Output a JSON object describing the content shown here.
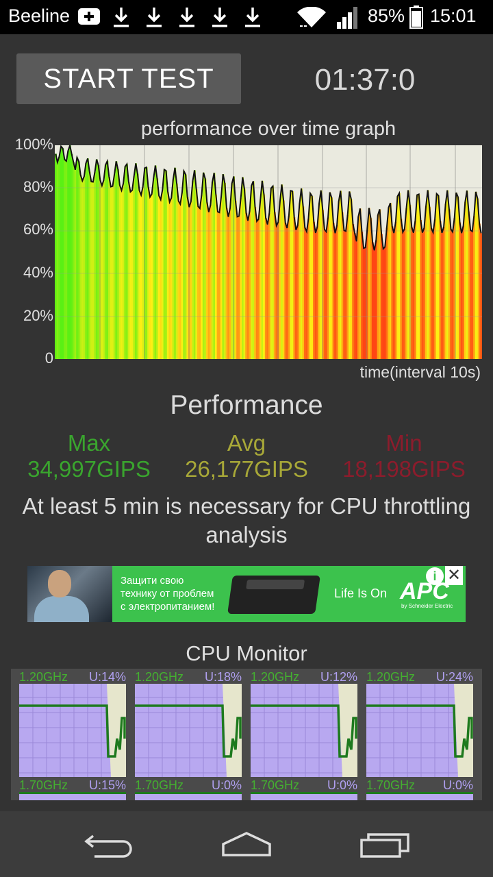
{
  "status_bar": {
    "carrier": "Beeline",
    "battery": "85%",
    "time": "15:01",
    "icons": [
      "plus-icon",
      "download-icon",
      "download-icon",
      "download-icon",
      "download-icon",
      "download-icon",
      "wifi-icon",
      "signal-icon",
      "battery-icon"
    ]
  },
  "controls": {
    "start_label": "START TEST",
    "timer": "01:37:0"
  },
  "chart_data": {
    "type": "area",
    "title": "performance over time graph",
    "xlabel": "time(interval 10s)",
    "y_ticks": [
      "100%",
      "80%",
      "60%",
      "40%",
      "20%",
      "0"
    ],
    "ylim": [
      0,
      100
    ],
    "grid": true,
    "note": "Performance oscillates between ~100% at start, settling to an oscillation between ~60% and ~82% over time."
  },
  "performance": {
    "title": "Performance",
    "max_label": "Max",
    "max_value": "34,997GIPS",
    "avg_label": "Avg",
    "avg_value": "26,177GIPS",
    "min_label": "Min",
    "min_value": "18,198GIPS",
    "colors": {
      "max": "#3aa52e",
      "avg": "#a8a838",
      "min": "#8c1c2c"
    },
    "note": "At least 5 min is necessary for CPU throttling analysis"
  },
  "ad": {
    "text_line1": "Защити свою",
    "text_line2": "технику от проблем",
    "text_line3": "с электропитанием!",
    "slogan": "Life Is On",
    "brand": "APC",
    "sub_brand": "by Schneider Electric"
  },
  "cpu_monitor": {
    "title": "CPU Monitor",
    "cores": [
      {
        "freq": "1.20GHz",
        "usage": "U:14%",
        "freq2": "1.70GHz",
        "usage2": "U:15%"
      },
      {
        "freq": "1.20GHz",
        "usage": "U:18%",
        "freq2": "1.70GHz",
        "usage2": "U:0%"
      },
      {
        "freq": "1.20GHz",
        "usage": "U:12%",
        "freq2": "1.70GHz",
        "usage2": "U:0%"
      },
      {
        "freq": "1.20GHz",
        "usage": "U:24%",
        "freq2": "1.70GHz",
        "usage2": "U:0%"
      }
    ]
  },
  "nav": {
    "icons": [
      "back-icon",
      "home-icon",
      "recent-apps-icon"
    ]
  }
}
